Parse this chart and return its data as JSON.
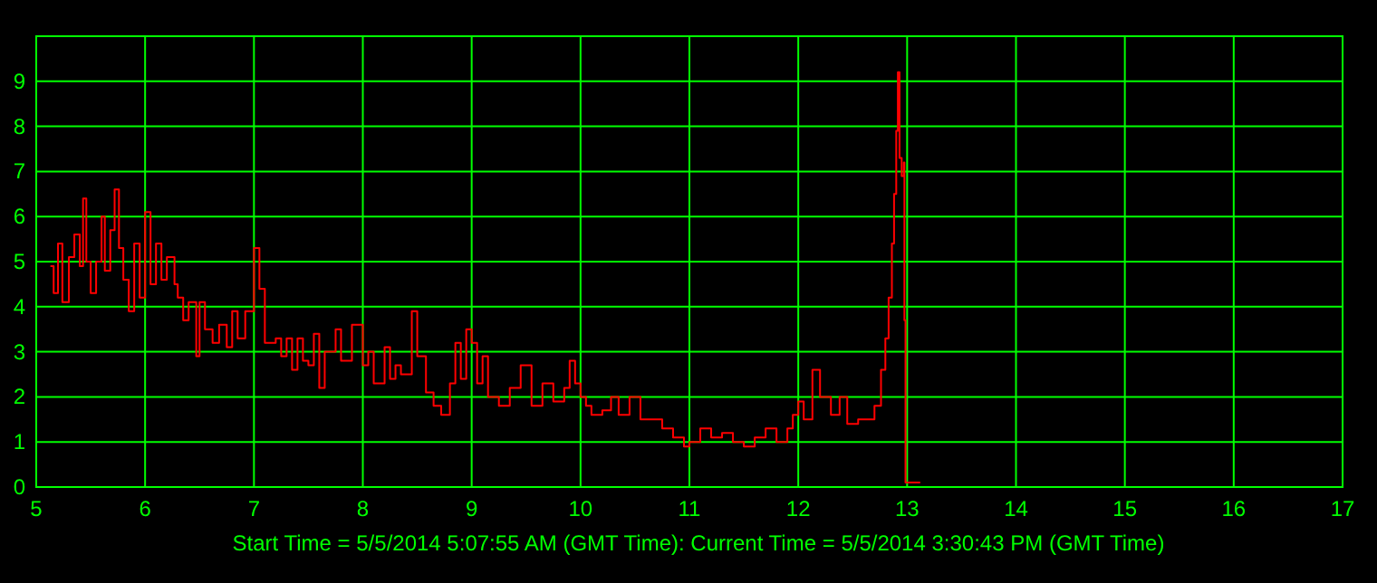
{
  "chart_data": {
    "type": "step",
    "xlabel": "Start Time = 5/5/2014 5:07:55 AM (GMT Time):  Current Time = 5/5/2014 3:30:43 PM (GMT Time)",
    "xlim": [
      5,
      17
    ],
    "xticks": [
      5,
      6,
      7,
      8,
      9,
      10,
      11,
      12,
      13,
      14,
      15,
      16,
      17
    ],
    "ylim": [
      0,
      10
    ],
    "yticks": [
      0,
      1,
      2,
      3,
      4,
      5,
      6,
      7,
      8,
      9
    ],
    "grid": true,
    "series": [
      {
        "color": "#ff0000",
        "x": [
          5.13,
          5.16,
          5.2,
          5.24,
          5.3,
          5.35,
          5.4,
          5.43,
          5.46,
          5.5,
          5.55,
          5.6,
          5.63,
          5.68,
          5.72,
          5.76,
          5.8,
          5.85,
          5.9,
          5.95,
          6.0,
          6.05,
          6.1,
          6.15,
          6.2,
          6.27,
          6.3,
          6.35,
          6.4,
          6.47,
          6.5,
          6.55,
          6.62,
          6.68,
          6.75,
          6.8,
          6.85,
          6.92,
          7.0,
          7.05,
          7.1,
          7.2,
          7.25,
          7.3,
          7.35,
          7.4,
          7.45,
          7.5,
          7.55,
          7.6,
          7.65,
          7.75,
          7.8,
          7.9,
          8.0,
          8.05,
          8.1,
          8.2,
          8.25,
          8.3,
          8.35,
          8.45,
          8.5,
          8.58,
          8.65,
          8.72,
          8.8,
          8.85,
          8.9,
          8.95,
          9.0,
          9.05,
          9.1,
          9.15,
          9.25,
          9.35,
          9.45,
          9.55,
          9.65,
          9.75,
          9.85,
          9.9,
          9.95,
          10.0,
          10.05,
          10.1,
          10.2,
          10.28,
          10.35,
          10.45,
          10.55,
          10.65,
          10.75,
          10.85,
          10.95,
          11.0,
          11.1,
          11.2,
          11.3,
          11.4,
          11.5,
          11.6,
          11.7,
          11.8,
          11.9,
          11.95,
          12.0,
          12.05,
          12.13,
          12.2,
          12.3,
          12.38,
          12.45,
          12.55,
          12.65,
          12.7,
          12.76,
          12.8,
          12.83,
          12.86,
          12.88,
          12.9,
          12.915,
          12.93,
          12.95,
          12.97,
          12.975,
          12.985,
          13.0,
          13.12
        ],
        "values": [
          4.9,
          4.3,
          5.4,
          4.1,
          5.1,
          5.6,
          4.9,
          6.4,
          5.0,
          4.3,
          5.0,
          6.0,
          4.8,
          5.7,
          6.6,
          5.3,
          4.6,
          3.9,
          5.4,
          4.2,
          6.1,
          4.5,
          5.4,
          4.6,
          5.1,
          4.5,
          4.2,
          3.7,
          4.1,
          2.9,
          4.1,
          3.5,
          3.2,
          3.6,
          3.1,
          3.9,
          3.3,
          3.9,
          5.3,
          4.4,
          3.2,
          3.3,
          2.9,
          3.3,
          2.6,
          3.3,
          2.8,
          2.7,
          3.4,
          2.2,
          3.0,
          3.5,
          2.8,
          3.6,
          2.7,
          3.0,
          2.3,
          3.1,
          2.4,
          2.7,
          2.5,
          3.9,
          2.9,
          2.1,
          1.8,
          1.6,
          2.3,
          3.2,
          2.4,
          3.5,
          3.2,
          2.3,
          2.9,
          2.0,
          1.8,
          2.2,
          2.7,
          1.8,
          2.3,
          1.9,
          2.2,
          2.8,
          2.3,
          2.0,
          1.8,
          1.6,
          1.7,
          2.0,
          1.6,
          2.0,
          1.5,
          1.5,
          1.3,
          1.1,
          0.9,
          1.0,
          1.3,
          1.1,
          1.2,
          1.0,
          0.9,
          1.1,
          1.3,
          1.0,
          1.3,
          1.6,
          1.9,
          1.5,
          2.6,
          2.0,
          1.6,
          2.0,
          1.4,
          1.5,
          1.5,
          1.8,
          2.6,
          3.3,
          4.2,
          5.4,
          6.5,
          7.9,
          9.2,
          7.3,
          6.9,
          7.2,
          3.7,
          0.1,
          0.1,
          0.1
        ]
      }
    ]
  }
}
